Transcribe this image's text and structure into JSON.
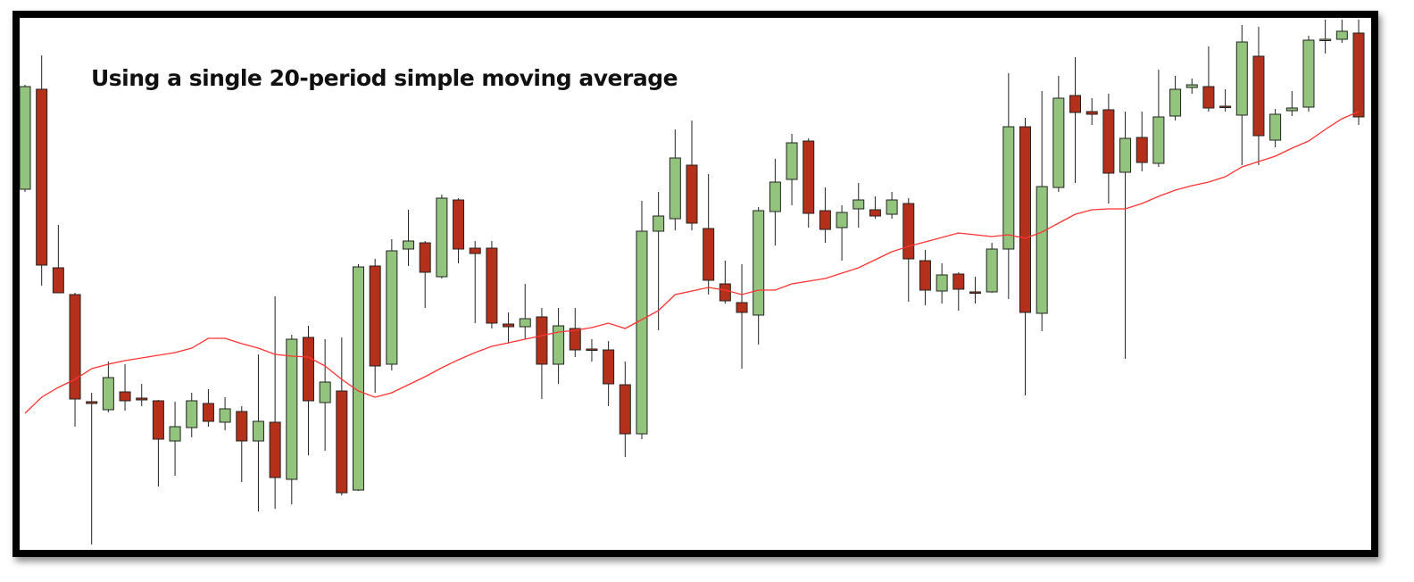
{
  "chart_data": {
    "type": "candlestick",
    "title": "Using a single 20-period simple moving average",
    "ylim": [
      0,
      590
    ],
    "up_color": "#93c47d",
    "down_color": "#b5301a",
    "outline_color": "#222222",
    "open": [
      400,
      512,
      312,
      282,
      162,
      153,
      173,
      166,
      163,
      118,
      133,
      160,
      139,
      151,
      118,
      139,
      75,
      234,
      161,
      174,
      63,
      314,
      204,
      333,
      340,
      302,
      388,
      334,
      334,
      249,
      246,
      257,
      204,
      244,
      221,
      220,
      181,
      126,
      353,
      367,
      427,
      356,
      294,
      273,
      259,
      375,
      411,
      454,
      376,
      357,
      378,
      377,
      372,
      384,
      320,
      286,
      305,
      285,
      285,
      333,
      470,
      261,
      402,
      505,
      487,
      489,
      419,
      458,
      429,
      482,
      514,
      515,
      493,
      483,
      549,
      455,
      488,
      492,
      567,
      568,
      575
    ],
    "high": [
      517,
      550,
      360,
      284,
      172,
      207,
      204,
      182,
      164,
      162,
      172,
      176,
      167,
      157,
      215,
      280,
      237,
      247,
      232,
      234,
      316,
      322,
      344,
      377,
      342,
      394,
      390,
      342,
      342,
      262,
      294,
      267,
      267,
      267,
      232,
      230,
      207,
      387,
      397,
      467,
      477,
      417,
      320,
      316,
      380,
      434,
      462,
      457,
      402,
      382,
      407,
      392,
      397,
      390,
      332,
      317,
      307,
      302,
      340,
      530,
      480,
      510,
      527,
      548,
      502,
      507,
      487,
      487,
      534,
      527,
      524,
      560,
      512,
      584,
      582,
      490,
      510,
      572,
      590,
      590,
      590
    ],
    "low": [
      397,
      292,
      284,
      134,
      2,
      150,
      152,
      157,
      67,
      79,
      122,
      134,
      130,
      72,
      39,
      42,
      47,
      102,
      107,
      57,
      62,
      172,
      197,
      314,
      267,
      300,
      317,
      250,
      244,
      227,
      232,
      165,
      182,
      212,
      207,
      157,
      100,
      120,
      242,
      354,
      354,
      282,
      272,
      199,
      226,
      337,
      382,
      357,
      340,
      320,
      357,
      367,
      367,
      274,
      270,
      272,
      264,
      272,
      284,
      277,
      169,
      241,
      397,
      407,
      472,
      384,
      210,
      420,
      425,
      477,
      507,
      487,
      487,
      427,
      427,
      447,
      482,
      487,
      552,
      564,
      472
    ],
    "close": [
      515,
      315,
      284,
      165,
      160,
      189,
      163,
      164,
      120,
      134,
      163,
      140,
      154,
      118,
      140,
      77,
      232,
      163,
      184,
      60,
      313,
      202,
      331,
      342,
      307,
      390,
      333,
      328,
      250,
      246,
      255,
      204,
      247,
      220,
      220,
      182,
      126,
      353,
      370,
      435,
      362,
      298,
      275,
      262,
      376,
      408,
      452,
      373,
      355,
      374,
      388,
      370,
      388,
      322,
      287,
      304,
      288,
      284,
      333,
      470,
      262,
      403,
      502,
      486,
      484,
      418,
      457,
      430,
      481,
      512,
      517,
      491,
      492,
      565,
      460,
      484,
      491,
      567,
      568,
      577,
      481
    ],
    "moving_average": {
      "color": "#ff3333",
      "values": [
        149,
        167,
        178,
        187,
        199,
        204,
        208,
        211,
        214,
        217,
        222,
        233,
        233,
        227,
        222,
        215,
        213,
        212,
        202,
        187,
        174,
        167,
        172,
        181,
        190,
        200,
        209,
        217,
        224,
        228,
        232,
        236,
        240,
        242,
        245,
        250,
        244,
        254,
        264,
        282,
        286,
        290,
        287,
        282,
        287,
        287,
        294,
        297,
        300,
        306,
        312,
        321,
        330,
        336,
        341,
        346,
        351,
        349,
        347,
        349,
        345,
        352,
        362,
        372,
        377,
        378,
        378,
        384,
        392,
        399,
        404,
        408,
        414,
        425,
        431,
        437,
        446,
        454,
        467,
        479,
        487
      ]
    }
  }
}
